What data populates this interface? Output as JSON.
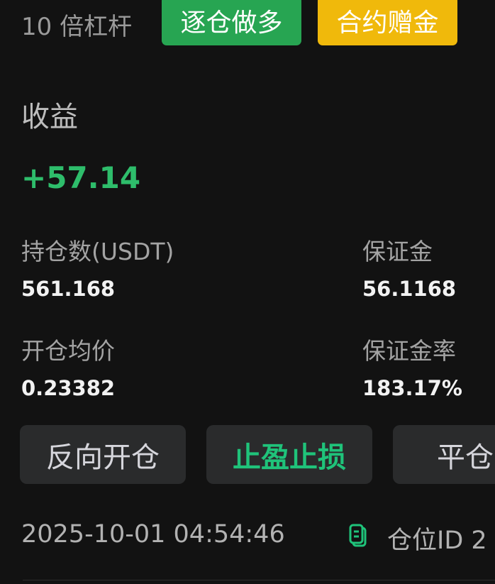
{
  "header": {
    "leverage": "10 倍杠杆",
    "badges": [
      "逐仓做多",
      "合约赠金"
    ],
    "badge_colors": [
      "#27a552",
      "#f0b90b"
    ]
  },
  "profit": {
    "label": "收益",
    "value": "+57.14",
    "color": "#2ebd6b"
  },
  "stats": {
    "position_size": {
      "label": "持仓数(USDT)",
      "value": "561.168"
    },
    "margin": {
      "label": "保证金",
      "value": "56.1168"
    },
    "entry_price": {
      "label": "开仓均价",
      "value": "0.23382"
    },
    "margin_ratio": {
      "label": "保证金率",
      "value": "183.17%"
    }
  },
  "buttons": {
    "reverse": "反向开仓",
    "tp_sl": "止盈止损",
    "close": "平仓"
  },
  "footer": {
    "timestamp": "2025-10-01 04:54:46",
    "position_id_label": "仓位ID 2",
    "icon": "copy-icon"
  }
}
